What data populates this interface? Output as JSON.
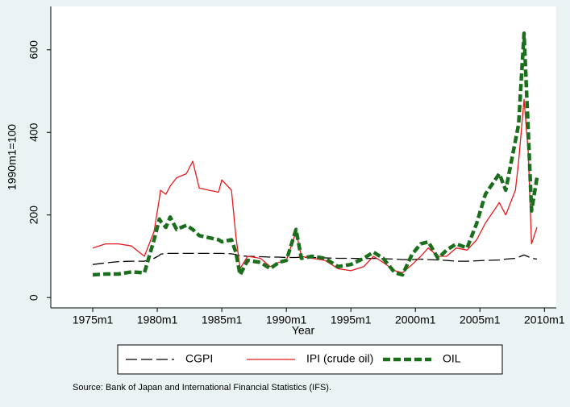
{
  "chart_data": {
    "type": "line",
    "x_label": "Year",
    "y_label": "1990m1=100",
    "source": "Source: Bank of Japan and International Financial Statistics (IFS).",
    "x": [
      "1975m1",
      "1976m1",
      "1977m1",
      "1978m1",
      "1979m1",
      "1979m10",
      "1980m3",
      "1980m4",
      "1980m9",
      "1981m1",
      "1981m7",
      "1982m4",
      "1982m10",
      "1983m4",
      "1984m1",
      "1984m10",
      "1985m1",
      "1985m10",
      "1986m2",
      "1986m6",
      "1987m1",
      "1988m1",
      "1988m10",
      "1989m6",
      "1990m1",
      "1990m10",
      "1991m3",
      "1992m1",
      "1993m1",
      "1994m1",
      "1995m1",
      "1996m1",
      "1996m10",
      "1997m7",
      "1998m6",
      "1999m1",
      "1999m10",
      "2000m6",
      "2001m1",
      "2001m10",
      "2002m6",
      "2003m3",
      "2004m1",
      "2004m10",
      "2005m6",
      "2006m7",
      "2007m1",
      "2007m10",
      "2008m1",
      "2008m6",
      "2008m10",
      "2009m1",
      "2009m6"
    ],
    "xlim": [
      "1971m10",
      "2010m12"
    ],
    "xticks": [
      "1975m1",
      "1980m1",
      "1985m1",
      "1990m1",
      "1995m1",
      "2000m1",
      "2005m1",
      "2010m1"
    ],
    "ylim": [
      -25,
      705
    ],
    "yticks": [
      0,
      200,
      400,
      600
    ],
    "series": [
      {
        "name": "CGPI",
        "color": "#000000",
        "values": [
          80,
          84,
          87,
          88,
          88,
          95,
          102,
          105,
          107,
          107,
          107,
          107,
          107,
          107,
          107,
          107,
          107,
          106,
          104,
          101,
          100,
          99,
          98,
          98,
          97,
          97,
          98,
          97,
          96,
          95,
          95,
          94,
          95,
          94,
          93,
          92,
          92,
          93,
          92,
          91,
          90,
          88,
          88,
          89,
          90,
          91,
          93,
          95,
          98,
          103,
          99,
          95,
          93
        ]
      },
      {
        "name": "IPI (crude oil)",
        "color": "#e8191c",
        "values": [
          120,
          130,
          130,
          125,
          100,
          160,
          240,
          260,
          250,
          270,
          290,
          300,
          330,
          265,
          260,
          255,
          285,
          260,
          150,
          70,
          100,
          95,
          75,
          85,
          90,
          160,
          100,
          95,
          90,
          70,
          65,
          75,
          100,
          85,
          65,
          60,
          80,
          100,
          120,
          100,
          100,
          120,
          115,
          140,
          180,
          230,
          200,
          260,
          330,
          480,
          350,
          130,
          170
        ]
      },
      {
        "name": "OIL",
        "color": "#1b6e1b",
        "values": [
          55,
          57,
          57,
          62,
          60,
          140,
          190,
          185,
          170,
          195,
          165,
          175,
          165,
          150,
          145,
          140,
          135,
          140,
          110,
          55,
          90,
          85,
          70,
          85,
          90,
          165,
          95,
          100,
          95,
          75,
          80,
          95,
          110,
          95,
          60,
          55,
          105,
          130,
          135,
          95,
          115,
          130,
          120,
          180,
          250,
          300,
          260,
          380,
          420,
          640,
          400,
          210,
          290
        ]
      }
    ]
  }
}
